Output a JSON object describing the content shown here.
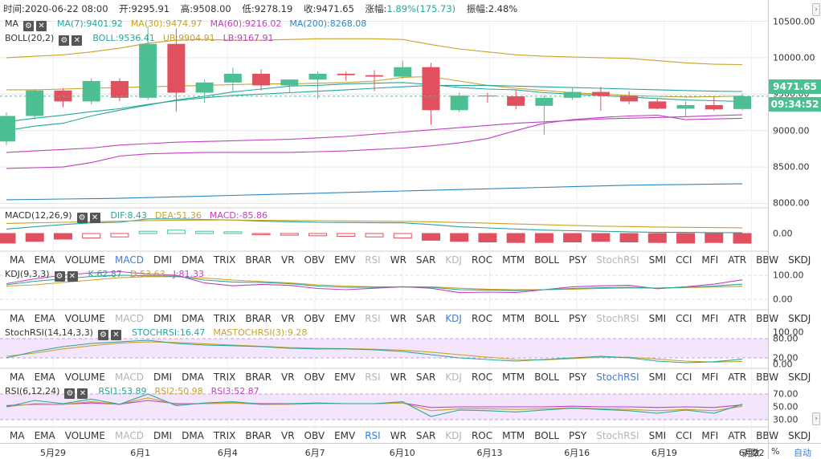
{
  "info": {
    "time_label": "时间:",
    "time": "2020-06-22 08:00",
    "open_label": "开:",
    "open": "9295.91",
    "high_label": "高:",
    "high": "9508.00",
    "low_label": "低:",
    "low": "9278.19",
    "close_label": "收:",
    "close": "9471.65",
    "change_label": "涨幅:",
    "change": "1.89%(175.73)",
    "amp_label": "振幅:",
    "amp": "2.48%"
  },
  "ma_legend": {
    "tag": "MA",
    "items": [
      {
        "label": "MA(7):9401.92",
        "color": "#26a69a"
      },
      {
        "label": "MA(30):9474.97",
        "color": "#c9a227"
      },
      {
        "label": "MA(60):9216.02",
        "color": "#c23fc2"
      },
      {
        "label": "MA(200):8268.08",
        "color": "#2e86c1"
      }
    ]
  },
  "boll_legend": {
    "tag": "BOLL(20,2)",
    "items": [
      {
        "label": "BOLL:9536.41",
        "color": "#26a69a"
      },
      {
        "label": "UB:9904.91",
        "color": "#c9a227"
      },
      {
        "label": "LB:9167.91",
        "color": "#c23fc2"
      }
    ]
  },
  "macd_legend": {
    "tag": "MACD(12,26,9)",
    "items": [
      {
        "label": "DIF:8.43",
        "color": "#26a69a"
      },
      {
        "label": "DEA:51.36",
        "color": "#c9a227"
      },
      {
        "label": "MACD:-85.86",
        "color": "#c23fc2"
      }
    ]
  },
  "kdj_legend": {
    "tag": "KDJ(9,3,3)",
    "items": [
      {
        "label": "K:62.87",
        "color": "#26a69a"
      },
      {
        "label": "D:53.63",
        "color": "#c9a227"
      },
      {
        "label": "J:81.33",
        "color": "#c23fc2"
      }
    ]
  },
  "stochrsi_legend": {
    "tag": "StochRSI(14,14,3,3)",
    "items": [
      {
        "label": "STOCHRSI:16.47",
        "color": "#26a69a"
      },
      {
        "label": "MASTOCHRSI(3):9.28",
        "color": "#c9a227"
      }
    ]
  },
  "rsi_legend": {
    "tag": "RSI(6,12,24)",
    "items": [
      {
        "label": "RSI1:53.89",
        "color": "#26a69a"
      },
      {
        "label": "RSI2:50.98",
        "color": "#c9a227"
      },
      {
        "label": "RSI3:52.87",
        "color": "#c23fc2"
      }
    ]
  },
  "indicator_tabs": [
    "MA",
    "EMA",
    "VOLUME",
    "MACD",
    "DMI",
    "DMA",
    "TRIX",
    "BRAR",
    "VR",
    "OBV",
    "EMV",
    "RSI",
    "WR",
    "SAR",
    "KDJ",
    "ROC",
    "MTM",
    "BOLL",
    "PSY",
    "StochRSI",
    "SMI",
    "CCI",
    "MFI",
    "ATR",
    "BBW",
    "SKDJ"
  ],
  "tab_rows": [
    {
      "active": "MACD",
      "disabled": [
        "RSI",
        "KDJ",
        "StochRSI"
      ]
    },
    {
      "active": "KDJ",
      "disabled": [
        "MACD",
        "RSI",
        "StochRSI"
      ]
    },
    {
      "active": "StochRSI",
      "disabled": [
        "MACD",
        "RSI",
        "KDJ"
      ]
    },
    {
      "active": "RSI",
      "disabled": [
        "MACD",
        "KDJ",
        "StochRSI"
      ]
    }
  ],
  "price_tag": {
    "price": "9471.65",
    "countdown": "09:34:52"
  },
  "bottom_controls": {
    "log": "对数",
    "pct": "%",
    "auto": "自动"
  },
  "colors": {
    "up": "#4cbf93",
    "down": "#e0505e",
    "grid": "#e6e6e6"
  },
  "chart_data": {
    "type": "candlestick",
    "x_tick_labels": [
      "5月29",
      "6月1",
      "6月4",
      "6月7",
      "6月10",
      "6月13",
      "6月16",
      "6月19",
      "6月22"
    ],
    "price_axis": {
      "ticks": [
        "10500.00",
        "10000.00",
        "9500.00",
        "9000.00",
        "8500.00",
        "8000.00"
      ],
      "range": [
        7950,
        10550
      ]
    },
    "candles": [
      {
        "o": 8850,
        "h": 9250,
        "l": 8800,
        "c": 9200
      },
      {
        "o": 9200,
        "h": 9570,
        "l": 9150,
        "c": 9550
      },
      {
        "o": 9550,
        "h": 9580,
        "l": 9320,
        "c": 9400
      },
      {
        "o": 9400,
        "h": 9720,
        "l": 9360,
        "c": 9680
      },
      {
        "o": 9680,
        "h": 9720,
        "l": 9400,
        "c": 9450
      },
      {
        "o": 9450,
        "h": 10430,
        "l": 9420,
        "c": 10190
      },
      {
        "o": 10190,
        "h": 10400,
        "l": 9260,
        "c": 9520
      },
      {
        "o": 9520,
        "h": 9700,
        "l": 9380,
        "c": 9660
      },
      {
        "o": 9660,
        "h": 9860,
        "l": 9540,
        "c": 9780
      },
      {
        "o": 9780,
        "h": 9840,
        "l": 9550,
        "c": 9620
      },
      {
        "o": 9620,
        "h": 9700,
        "l": 9520,
        "c": 9700
      },
      {
        "o": 9700,
        "h": 9810,
        "l": 9440,
        "c": 9780
      },
      {
        "o": 9780,
        "h": 9810,
        "l": 9680,
        "c": 9760
      },
      {
        "o": 9760,
        "h": 9830,
        "l": 9540,
        "c": 9740
      },
      {
        "o": 9740,
        "h": 9960,
        "l": 9710,
        "c": 9870
      },
      {
        "o": 9870,
        "h": 9930,
        "l": 9080,
        "c": 9280
      },
      {
        "o": 9280,
        "h": 9520,
        "l": 9250,
        "c": 9480
      },
      {
        "o": 9480,
        "h": 9520,
        "l": 9380,
        "c": 9470
      },
      {
        "o": 9470,
        "h": 9560,
        "l": 9290,
        "c": 9340
      },
      {
        "o": 9340,
        "h": 9480,
        "l": 8940,
        "c": 9450
      },
      {
        "o": 9450,
        "h": 9590,
        "l": 9420,
        "c": 9530
      },
      {
        "o": 9530,
        "h": 9600,
        "l": 9270,
        "c": 9480
      },
      {
        "o": 9480,
        "h": 9540,
        "l": 9360,
        "c": 9400
      },
      {
        "o": 9400,
        "h": 9430,
        "l": 9290,
        "c": 9300
      },
      {
        "o": 9300,
        "h": 9400,
        "l": 9180,
        "c": 9350
      },
      {
        "o": 9350,
        "h": 9460,
        "l": 9270,
        "c": 9290
      },
      {
        "o": 9296,
        "h": 9508,
        "l": 9278,
        "c": 9472
      }
    ],
    "ma7": [
      9000,
      9060,
      9100,
      9200,
      9280,
      9350,
      9420,
      9470,
      9530,
      9570,
      9610,
      9620,
      9640,
      9650,
      9660,
      9630,
      9590,
      9570,
      9560,
      9520,
      9500,
      9480,
      9460,
      9440,
      9420,
      9410,
      9400
    ],
    "ma30": [
      9560,
      9560,
      9570,
      9580,
      9590,
      9600,
      9610,
      9620,
      9630,
      9640,
      9640,
      9650,
      9660,
      9680,
      9730,
      9740,
      9680,
      9620,
      9580,
      9550,
      9520,
      9500,
      9480,
      9470,
      9460,
      9465,
      9475
    ],
    "ma60": [
      8700,
      8720,
      8740,
      8760,
      8800,
      8820,
      8840,
      8850,
      8860,
      8870,
      8880,
      8900,
      8920,
      8950,
      8980,
      9010,
      9040,
      9070,
      9100,
      9120,
      9140,
      9160,
      9170,
      9180,
      9190,
      9205,
      9216
    ],
    "ma200": [
      8050,
      8055,
      8060,
      8065,
      8070,
      8080,
      8090,
      8100,
      8110,
      8120,
      8130,
      8140,
      8150,
      8160,
      8170,
      8180,
      8190,
      8200,
      8210,
      8220,
      8230,
      8240,
      8250,
      8255,
      8260,
      8265,
      8268
    ],
    "boll_mid": [
      9120,
      9170,
      9210,
      9260,
      9300,
      9360,
      9410,
      9450,
      9480,
      9500,
      9520,
      9540,
      9560,
      9580,
      9600,
      9620,
      9620,
      9620,
      9610,
      9600,
      9590,
      9580,
      9570,
      9560,
      9550,
      9540,
      9536
    ],
    "boll_upper": [
      10000,
      10020,
      10040,
      10080,
      10130,
      10200,
      10240,
      10250,
      10240,
      10240,
      10250,
      10260,
      10260,
      10260,
      10250,
      10180,
      10120,
      10080,
      10040,
      10020,
      10010,
      10000,
      9990,
      9960,
      9930,
      9910,
      9905
    ],
    "boll_lower": [
      8480,
      8490,
      8500,
      8560,
      8650,
      8680,
      8690,
      8700,
      8700,
      8700,
      8700,
      8710,
      8720,
      8740,
      8760,
      8790,
      8830,
      8890,
      9000,
      9100,
      9150,
      9180,
      9200,
      9210,
      9150,
      9160,
      9168
    ],
    "macd": {
      "range": [
        -150,
        150
      ],
      "ticks": [
        "0.00"
      ],
      "hist": [
        -85,
        -70,
        -50,
        -40,
        -30,
        20,
        30,
        20,
        15,
        -10,
        -15,
        -20,
        -25,
        -30,
        -40,
        -60,
        -70,
        -75,
        -80,
        -80,
        -75,
        -70,
        -75,
        -80,
        -85,
        -80,
        -86
      ],
      "dif": [
        40,
        60,
        80,
        95,
        100,
        130,
        130,
        125,
        120,
        110,
        105,
        100,
        98,
        96,
        95,
        80,
        60,
        50,
        40,
        30,
        25,
        20,
        15,
        10,
        10,
        8,
        8
      ],
      "dea": [
        90,
        95,
        100,
        105,
        110,
        115,
        118,
        120,
        120,
        118,
        116,
        114,
        112,
        110,
        108,
        104,
        98,
        92,
        85,
        78,
        72,
        66,
        62,
        58,
        55,
        53,
        51
      ]
    },
    "kdj": {
      "range": [
        -40,
        120
      ],
      "ticks": [
        "100.00",
        "0.00"
      ],
      "k": [
        60,
        75,
        85,
        95,
        100,
        98,
        96,
        80,
        72,
        70,
        65,
        55,
        50,
        50,
        52,
        50,
        40,
        38,
        36,
        40,
        45,
        48,
        50,
        46,
        50,
        55,
        63
      ],
      "d": [
        55,
        60,
        70,
        80,
        90,
        94,
        94,
        88,
        80,
        74,
        68,
        60,
        55,
        52,
        52,
        52,
        46,
        42,
        40,
        40,
        42,
        45,
        47,
        47,
        49,
        51,
        54
      ],
      "j": [
        65,
        85,
        100,
        110,
        115,
        105,
        100,
        68,
        56,
        62,
        58,
        45,
        40,
        46,
        52,
        46,
        28,
        30,
        28,
        40,
        52,
        56,
        58,
        44,
        52,
        63,
        81
      ]
    },
    "stochrsi": {
      "range": [
        -10,
        110
      ],
      "ticks": [
        "100.00",
        "80.00",
        "20.00",
        "0.00"
      ],
      "k": [
        20,
        40,
        55,
        65,
        70,
        75,
        65,
        60,
        58,
        55,
        50,
        48,
        48,
        45,
        40,
        30,
        20,
        15,
        10,
        15,
        20,
        25,
        20,
        10,
        5,
        8,
        16
      ],
      "d": [
        25,
        35,
        48,
        58,
        66,
        70,
        68,
        64,
        60,
        56,
        52,
        50,
        49,
        47,
        44,
        38,
        30,
        22,
        15,
        14,
        18,
        22,
        22,
        16,
        10,
        7,
        9
      ]
    },
    "rsi": {
      "range": [
        20,
        80
      ],
      "ticks": [
        "70.00",
        "50.00",
        "30.00"
      ],
      "r1": [
        50,
        60,
        55,
        62,
        54,
        70,
        52,
        56,
        58,
        54,
        55,
        56,
        55,
        55,
        58,
        35,
        45,
        44,
        42,
        45,
        48,
        46,
        44,
        40,
        45,
        40,
        54
      ],
      "r2": [
        50,
        55,
        54,
        58,
        54,
        64,
        54,
        55,
        56,
        54,
        54,
        55,
        55,
        55,
        56,
        44,
        47,
        47,
        46,
        47,
        48,
        47,
        46,
        44,
        46,
        44,
        51
      ],
      "r3": [
        52,
        54,
        54,
        56,
        54,
        60,
        55,
        55,
        56,
        55,
        55,
        55,
        55,
        55,
        56,
        49,
        50,
        50,
        50,
        50,
        51,
        50,
        50,
        49,
        50,
        49,
        53
      ]
    }
  }
}
